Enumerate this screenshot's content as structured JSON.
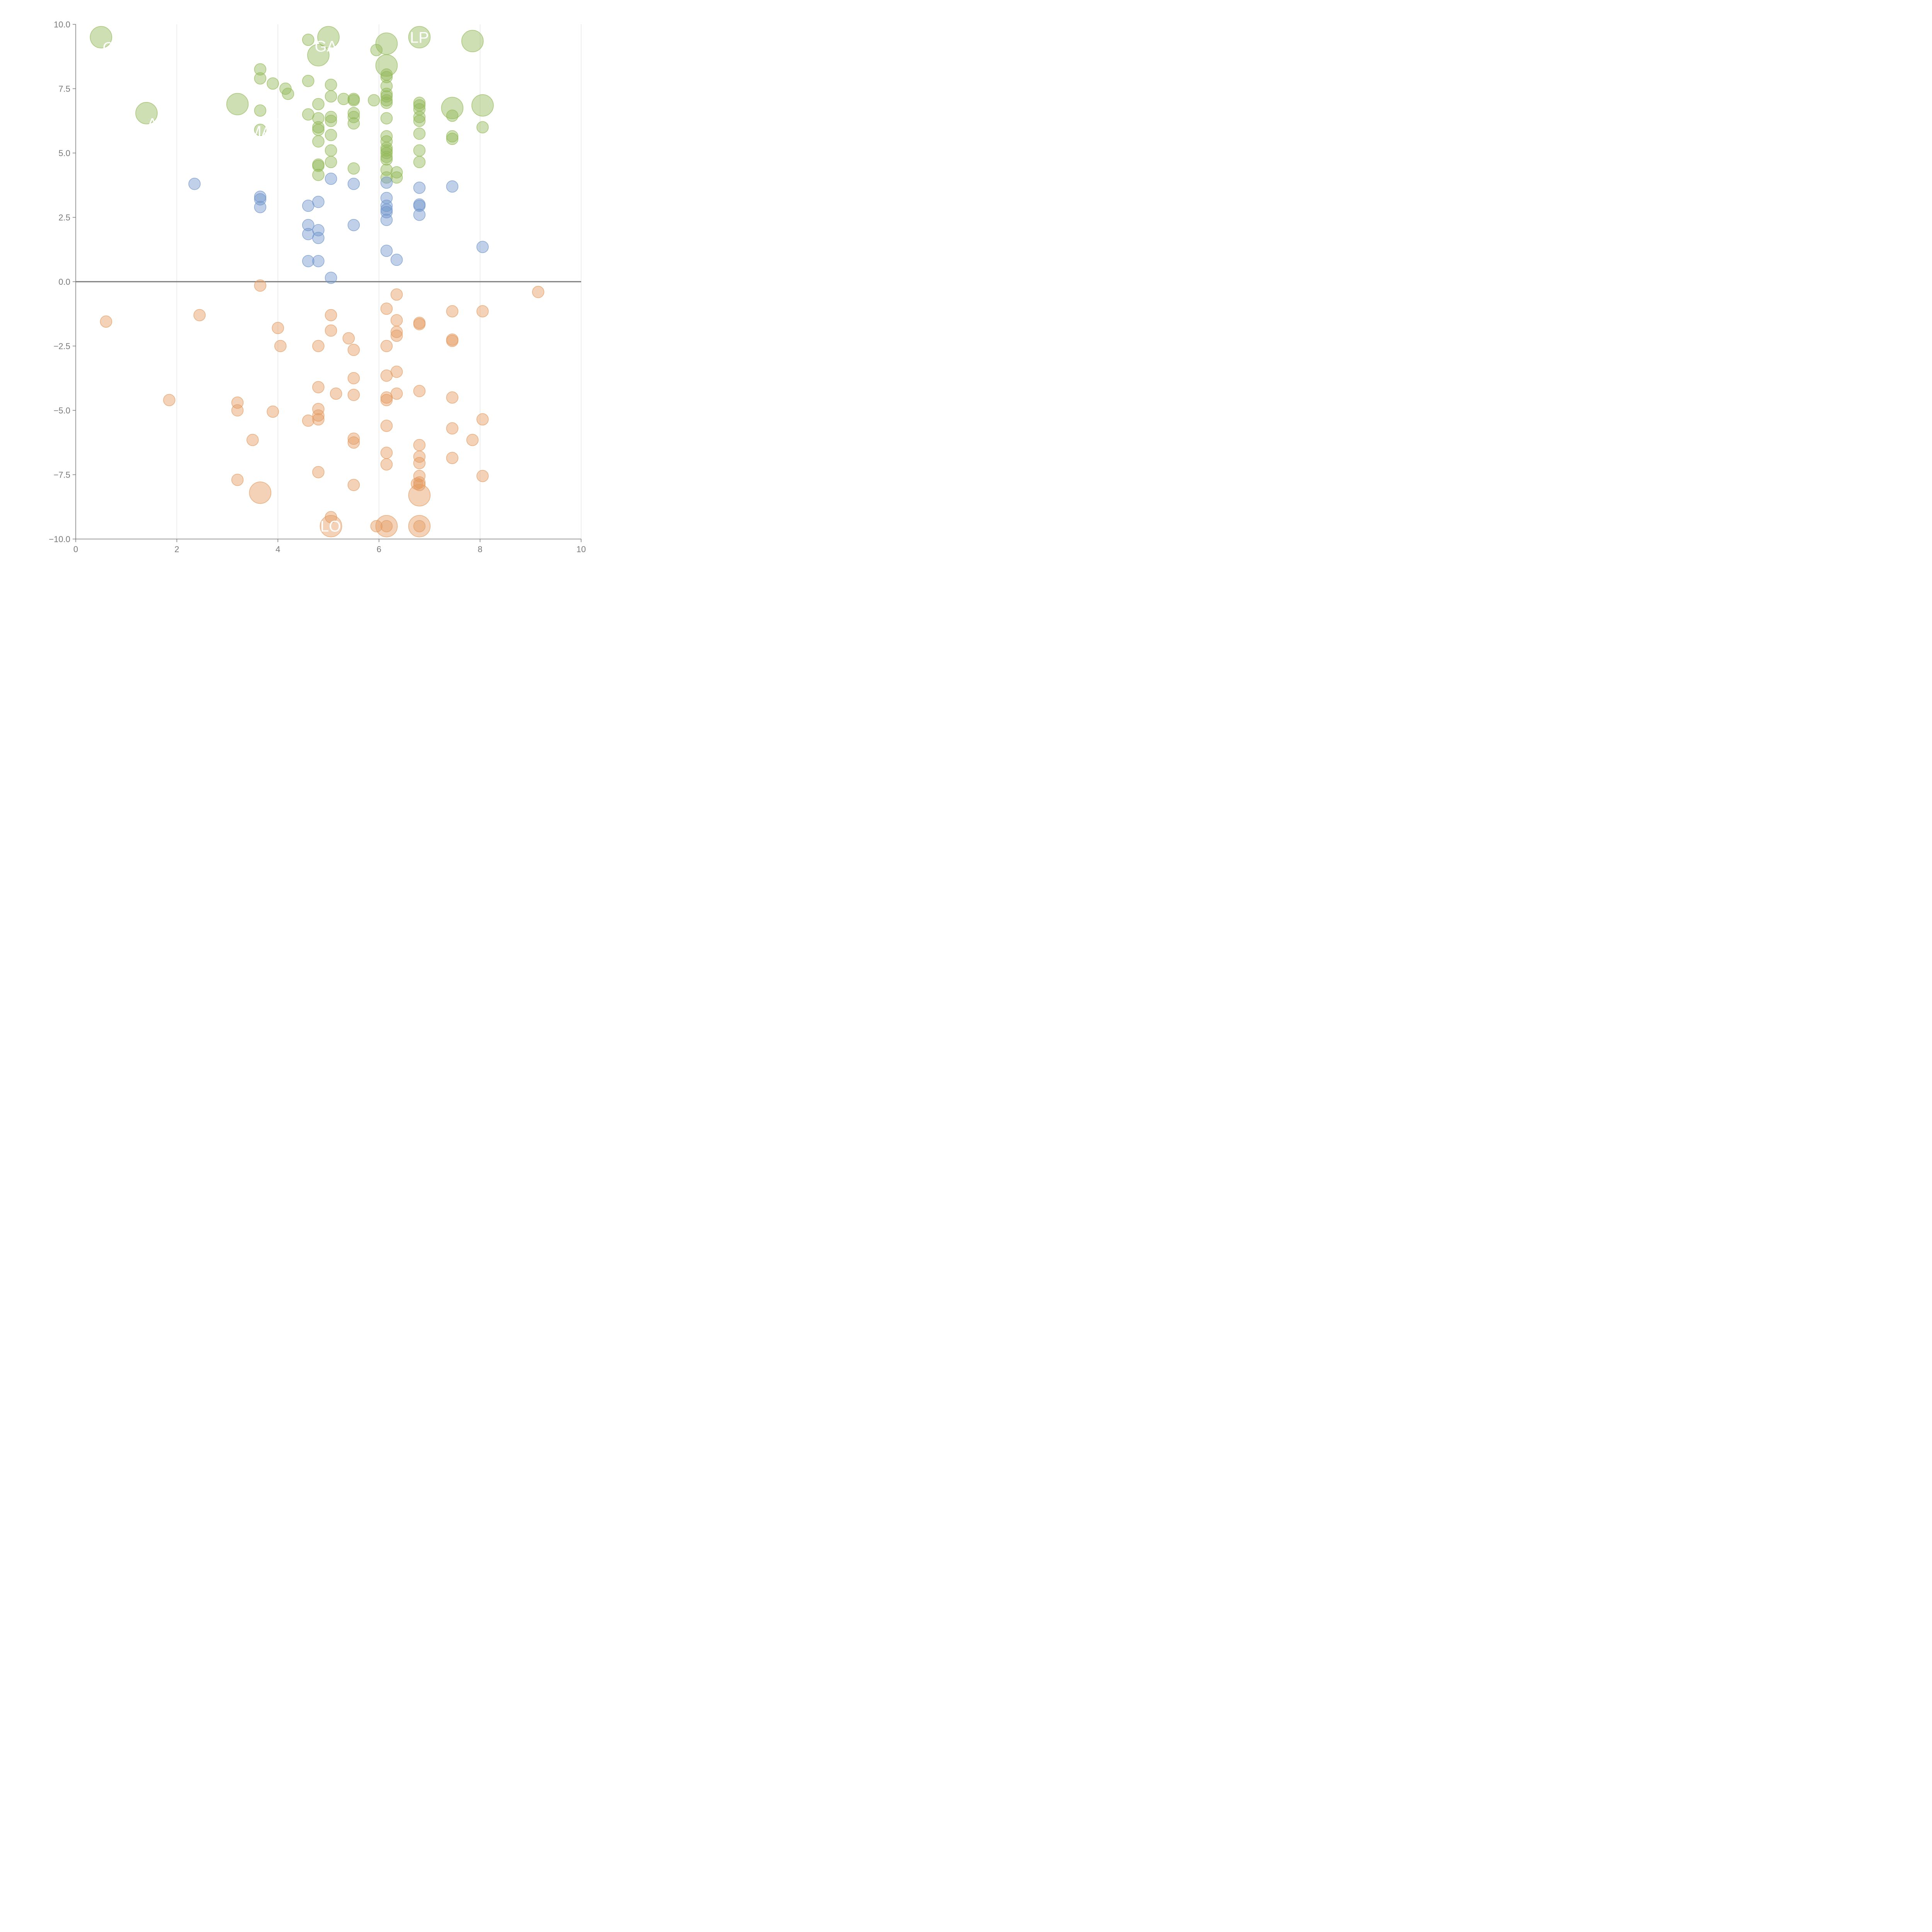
{
  "chart_data": {
    "type": "scatter",
    "title": "",
    "xlabel": "",
    "ylabel": "",
    "xlim": [
      0,
      10
    ],
    "ylim": [
      -10,
      10
    ],
    "grid": "vertical",
    "x_ticks": [
      "0",
      "2",
      "4",
      "6",
      "8",
      "10"
    ],
    "y_ticks": [
      "10.0",
      "7.5",
      "5.0",
      "2.5",
      "0.0",
      "−2.5",
      "−5.0",
      "−7.5",
      "−10.0"
    ],
    "colors": {
      "green": "#93b958",
      "blue": "#7096cc",
      "orange": "#e49c61",
      "axis": "#7a7a7a",
      "zero_line": "#7a7a7a",
      "grid": "#dddddd"
    },
    "series": [
      {
        "color_key": "green",
        "points": [
          [
            0.5,
            9.5,
            "l"
          ],
          [
            1.4,
            6.55,
            "l"
          ],
          [
            3.2,
            6.9,
            "l"
          ],
          [
            4.8,
            8.8,
            "l"
          ],
          [
            5.0,
            9.5,
            "l"
          ],
          [
            6.15,
            9.25,
            "l"
          ],
          [
            6.15,
            8.4,
            "l"
          ],
          [
            6.8,
            9.5,
            "l"
          ],
          [
            7.85,
            9.35,
            "l"
          ],
          [
            7.45,
            6.75,
            "l"
          ],
          [
            8.05,
            6.85,
            "l"
          ],
          [
            3.65,
            8.25
          ],
          [
            3.65,
            7.9
          ],
          [
            3.9,
            7.7
          ],
          [
            4.15,
            7.5
          ],
          [
            4.2,
            7.3
          ],
          [
            4.6,
            9.4
          ],
          [
            4.6,
            7.8
          ],
          [
            5.05,
            7.65
          ],
          [
            5.05,
            7.2
          ],
          [
            5.3,
            7.1
          ],
          [
            5.5,
            7.1
          ],
          [
            5.5,
            7.05
          ],
          [
            5.9,
            7.05
          ],
          [
            5.95,
            9.0
          ],
          [
            3.65,
            6.65
          ],
          [
            3.65,
            5.9
          ],
          [
            4.6,
            6.5
          ],
          [
            4.8,
            6.9
          ],
          [
            4.8,
            6.35
          ],
          [
            4.8,
            6.0
          ],
          [
            4.8,
            5.9
          ],
          [
            4.8,
            5.45
          ],
          [
            4.8,
            4.55
          ],
          [
            4.8,
            4.5
          ],
          [
            4.8,
            4.15
          ],
          [
            5.05,
            6.4
          ],
          [
            5.05,
            6.25
          ],
          [
            5.05,
            5.7
          ],
          [
            5.05,
            5.1
          ],
          [
            5.05,
            4.65
          ],
          [
            5.5,
            6.55
          ],
          [
            5.5,
            6.4
          ],
          [
            5.5,
            6.15
          ],
          [
            5.5,
            4.4
          ],
          [
            6.15,
            8.05
          ],
          [
            6.15,
            7.95
          ],
          [
            6.15,
            7.6
          ],
          [
            6.15,
            7.3
          ],
          [
            6.15,
            7.2
          ],
          [
            6.15,
            7.05
          ],
          [
            6.15,
            6.95
          ],
          [
            6.15,
            6.35
          ],
          [
            6.15,
            5.65
          ],
          [
            6.15,
            5.45
          ],
          [
            6.15,
            5.2
          ],
          [
            6.15,
            5.1
          ],
          [
            6.15,
            5.0
          ],
          [
            6.15,
            4.85
          ],
          [
            6.15,
            4.75
          ],
          [
            6.15,
            4.35
          ],
          [
            6.15,
            4.05
          ],
          [
            6.35,
            4.25
          ],
          [
            6.35,
            4.05
          ],
          [
            6.8,
            6.95
          ],
          [
            6.8,
            6.85
          ],
          [
            6.8,
            6.7
          ],
          [
            6.8,
            6.4
          ],
          [
            6.8,
            6.25
          ],
          [
            6.8,
            5.75
          ],
          [
            6.8,
            5.1
          ],
          [
            6.8,
            4.65
          ],
          [
            7.45,
            6.45
          ],
          [
            7.45,
            5.65
          ],
          [
            7.45,
            5.55
          ],
          [
            8.05,
            6.0
          ]
        ]
      },
      {
        "color_key": "blue",
        "points": [
          [
            2.35,
            3.8
          ],
          [
            3.65,
            3.3
          ],
          [
            3.65,
            3.2
          ],
          [
            3.65,
            2.9
          ],
          [
            4.6,
            2.95
          ],
          [
            4.6,
            2.2
          ],
          [
            4.6,
            1.85
          ],
          [
            4.6,
            0.8
          ],
          [
            4.8,
            3.1
          ],
          [
            4.8,
            2.0
          ],
          [
            4.8,
            1.7
          ],
          [
            4.8,
            0.8
          ],
          [
            5.05,
            4.0
          ],
          [
            5.05,
            0.15
          ],
          [
            5.5,
            3.8
          ],
          [
            5.5,
            2.2
          ],
          [
            6.15,
            3.85
          ],
          [
            6.15,
            3.25
          ],
          [
            6.15,
            2.95
          ],
          [
            6.15,
            2.8
          ],
          [
            6.15,
            2.7
          ],
          [
            6.15,
            2.4
          ],
          [
            6.15,
            1.2
          ],
          [
            6.35,
            0.85
          ],
          [
            6.8,
            3.65
          ],
          [
            6.8,
            3.0
          ],
          [
            6.8,
            2.95
          ],
          [
            6.8,
            2.6
          ],
          [
            7.45,
            3.7
          ],
          [
            8.05,
            1.35
          ]
        ]
      },
      {
        "color_key": "orange",
        "points": [
          [
            3.65,
            -8.2,
            "l"
          ],
          [
            5.05,
            -9.5,
            "l"
          ],
          [
            6.15,
            -9.5,
            "l"
          ],
          [
            6.8,
            -8.3,
            "l"
          ],
          [
            6.8,
            -9.5,
            "l"
          ],
          [
            0.6,
            -1.55
          ],
          [
            1.85,
            -4.6
          ],
          [
            2.45,
            -1.3
          ],
          [
            3.2,
            -4.7
          ],
          [
            3.2,
            -5.0
          ],
          [
            3.2,
            -7.7
          ],
          [
            3.5,
            -6.15
          ],
          [
            3.65,
            -0.15
          ],
          [
            3.9,
            -5.05
          ],
          [
            4.0,
            -1.8
          ],
          [
            4.05,
            -2.5
          ],
          [
            4.6,
            -5.4
          ],
          [
            4.8,
            -2.5
          ],
          [
            4.8,
            -4.1
          ],
          [
            4.8,
            -4.95
          ],
          [
            4.8,
            -5.2
          ],
          [
            4.8,
            -5.35
          ],
          [
            4.8,
            -7.4
          ],
          [
            5.05,
            -1.3
          ],
          [
            5.05,
            -1.9
          ],
          [
            5.05,
            -9.15
          ],
          [
            5.15,
            -4.35
          ],
          [
            5.4,
            -2.2
          ],
          [
            5.5,
            -2.65
          ],
          [
            5.5,
            -3.75
          ],
          [
            5.5,
            -4.4
          ],
          [
            5.5,
            -6.1
          ],
          [
            5.5,
            -6.25
          ],
          [
            5.5,
            -7.9
          ],
          [
            5.95,
            -9.5
          ],
          [
            6.15,
            -1.05
          ],
          [
            6.15,
            -2.5
          ],
          [
            6.15,
            -3.65
          ],
          [
            6.15,
            -4.5
          ],
          [
            6.15,
            -4.6
          ],
          [
            6.15,
            -5.6
          ],
          [
            6.15,
            -6.65
          ],
          [
            6.15,
            -7.1
          ],
          [
            6.15,
            -9.5
          ],
          [
            6.35,
            -0.5
          ],
          [
            6.35,
            -1.5
          ],
          [
            6.35,
            -1.95
          ],
          [
            6.35,
            -2.1
          ],
          [
            6.35,
            -3.5
          ],
          [
            6.35,
            -4.35
          ],
          [
            6.75,
            -7.85
          ],
          [
            6.8,
            -1.6
          ],
          [
            6.8,
            -1.65
          ],
          [
            6.8,
            -4.25
          ],
          [
            6.8,
            -6.35
          ],
          [
            6.8,
            -6.8
          ],
          [
            6.8,
            -7.05
          ],
          [
            6.8,
            -7.55
          ],
          [
            6.8,
            -7.8
          ],
          [
            6.8,
            -7.9
          ],
          [
            6.8,
            -9.5
          ],
          [
            7.45,
            -1.15
          ],
          [
            7.45,
            -2.25
          ],
          [
            7.45,
            -2.3
          ],
          [
            7.45,
            -4.5
          ],
          [
            7.45,
            -5.7
          ],
          [
            7.45,
            -6.85
          ],
          [
            7.85,
            -6.15
          ],
          [
            8.05,
            -1.15
          ],
          [
            8.05,
            -5.35
          ],
          [
            8.05,
            -7.55
          ],
          [
            9.15,
            -0.4
          ]
        ]
      }
    ],
    "labels": [
      {
        "text": "G",
        "x": 0.65,
        "y": 9.1,
        "from": [
          0.5,
          9.5
        ]
      },
      {
        "text": "AL",
        "x": 1.6,
        "y": 6.15,
        "from": [
          1.4,
          6.55
        ]
      },
      {
        "text": "MA",
        "x": 3.65,
        "y": 5.85,
        "from": [
          4.5,
          7.0
        ]
      },
      {
        "text": "GA",
        "x": 4.95,
        "y": 9.15,
        "from": [
          4.8,
          8.8
        ]
      },
      {
        "text": "LP",
        "x": 6.8,
        "y": 9.5,
        "from": [
          6.8,
          9.5
        ]
      },
      {
        "text": "FLO",
        "x": 4.95,
        "y": -9.5,
        "from": [
          5.05,
          -9.5
        ]
      }
    ]
  }
}
